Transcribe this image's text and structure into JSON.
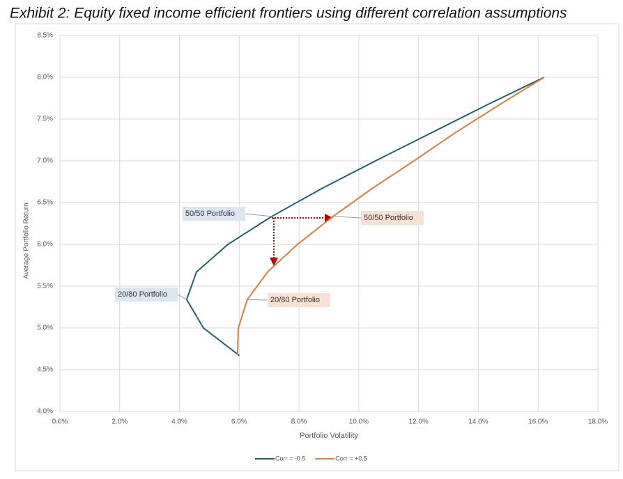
{
  "chart_data": {
    "type": "line",
    "title": "Exhibit 2:  Equity fixed income efficient frontiers using different correlation assumptions",
    "x_label": "Portfolio Volatility",
    "y_label": "Average Portfolio Return",
    "xlim": [
      0,
      18
    ],
    "ylim": [
      4,
      8.5
    ],
    "xticks": [
      {
        "value": 0,
        "label": "0.0%"
      },
      {
        "value": 2,
        "label": "2.0%"
      },
      {
        "value": 4,
        "label": "4.0%"
      },
      {
        "value": 6,
        "label": "6.0%"
      },
      {
        "value": 8,
        "label": "8.0%"
      },
      {
        "value": 10,
        "label": "10.0%"
      },
      {
        "value": 12,
        "label": "12.0%"
      },
      {
        "value": 14,
        "label": "14.0%"
      },
      {
        "value": 16,
        "label": "16.0%"
      },
      {
        "value": 18,
        "label": "18.0%"
      }
    ],
    "yticks": [
      {
        "value": 4,
        "label": "4.0%"
      },
      {
        "value": 4.5,
        "label": "4.5%"
      },
      {
        "value": 5,
        "label": "5.0%"
      },
      {
        "value": 5.5,
        "label": "5.5%"
      },
      {
        "value": 6,
        "label": "6.0%"
      },
      {
        "value": 6.5,
        "label": "6.5%"
      },
      {
        "value": 7,
        "label": "7.0%"
      },
      {
        "value": 7.5,
        "label": "7.5%"
      },
      {
        "value": 8,
        "label": "8.0%"
      },
      {
        "value": 8.5,
        "label": "8.5%"
      }
    ],
    "grid": true,
    "legend": "bottom",
    "series": [
      {
        "name": "Corr = -0.5",
        "color": "#1f5f74",
        "x": [
          6.0,
          4.8,
          4.24,
          4.57,
          5.62,
          7.09,
          8.77,
          10.56,
          12.4,
          14.29,
          16.2
        ],
        "values": [
          4.67,
          5.0,
          5.34,
          5.67,
          6.0,
          6.335,
          6.67,
          7.0,
          7.33,
          7.67,
          8.0
        ]
      },
      {
        "name": "Corr = +0.5",
        "color": "#e07b39",
        "x": [
          5.94,
          5.97,
          6.27,
          6.95,
          7.95,
          9.14,
          10.45,
          11.85,
          13.2,
          14.7,
          16.2
        ],
        "values": [
          4.67,
          5.0,
          5.34,
          5.67,
          6.0,
          6.335,
          6.67,
          7.0,
          7.33,
          7.67,
          8.0
        ]
      }
    ],
    "annotations": [
      "50/50 Portfolio",
      "50/50 Portfolio",
      "20/80 Portfolio",
      "20/80 Portfolio"
    ]
  }
}
